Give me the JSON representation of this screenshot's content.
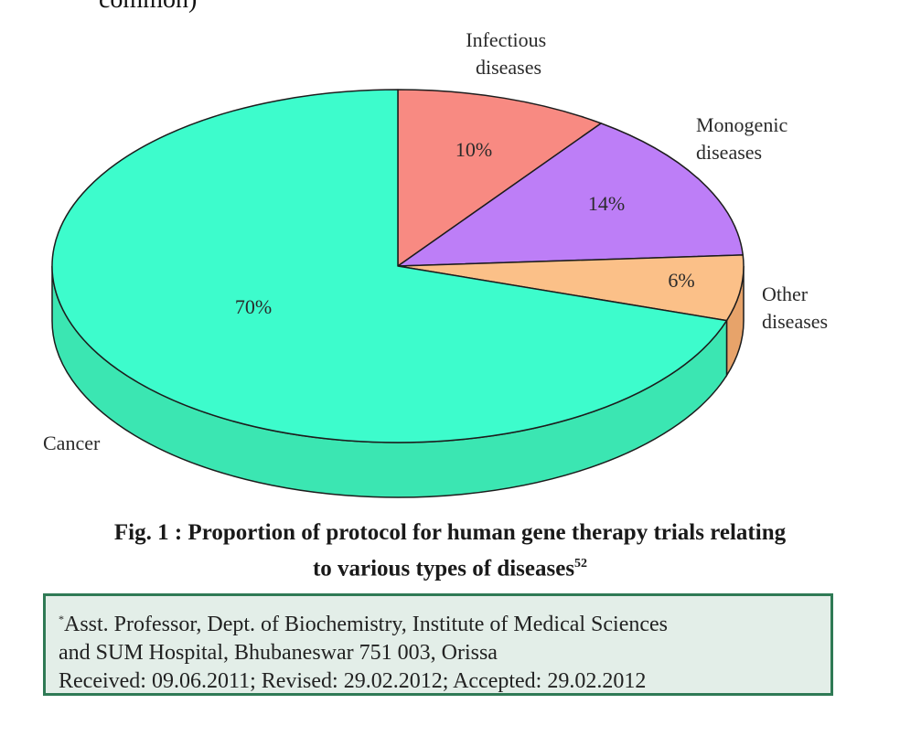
{
  "page": {
    "top_fragment": "common)"
  },
  "chart_data": {
    "type": "pie",
    "style": "3d",
    "slices": [
      {
        "label": "Cancer",
        "value": 70,
        "value_label": "70%",
        "color": "#3dfccc",
        "side_color": "#3be6b2"
      },
      {
        "label": "Infectious diseases",
        "label_lines": [
          "Infectious",
          "diseases"
        ],
        "value": 10,
        "value_label": "10%",
        "color": "#f88a82",
        "side_color": "#e0786f"
      },
      {
        "label": "Monogenic diseases",
        "label_lines": [
          "Monogenic",
          "diseases"
        ],
        "value": 14,
        "value_label": "14%",
        "color": "#bd7ef7",
        "side_color": "#a56ae0"
      },
      {
        "label": "Other diseases",
        "label_lines": [
          "Other",
          "diseases"
        ],
        "value": 6,
        "value_label": "6%",
        "color": "#fbc088",
        "side_color": "#e7a36a"
      }
    ]
  },
  "caption": {
    "line1": "Fig. 1 : Proportion of protocol for human gene therapy trials relating",
    "line2": "to various types of diseases",
    "ref": "52"
  },
  "info_box": {
    "marker": "*",
    "line1": "Asst. Professor, Dept. of Biochemistry, Institute of Medical Sciences",
    "line2": "and SUM Hospital, Bhubaneswar 751 003, Orissa",
    "line3": "Received: 09.06.2011; Revised: 29.02.2012; Accepted: 29.02.2012"
  }
}
